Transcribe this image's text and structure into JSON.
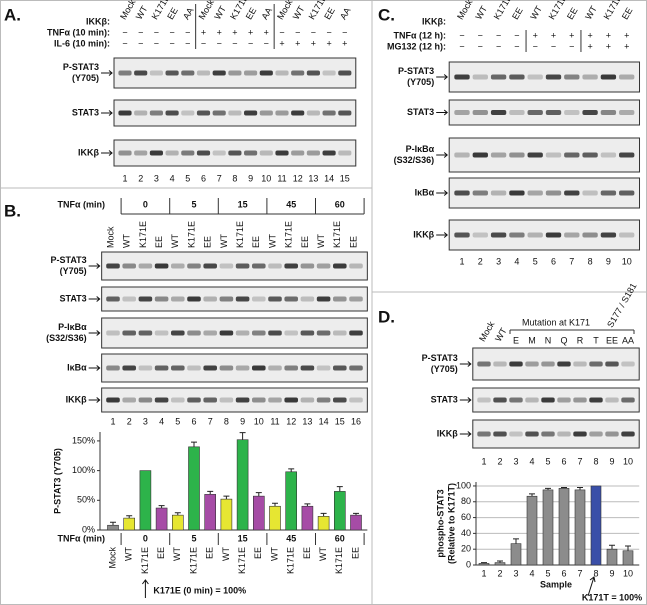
{
  "panels": [
    {
      "label": "A.",
      "row_labels": [
        "IKKβ:",
        "TNFα (10 min):",
        "IL-6 (10 min):"
      ],
      "lanes": [
        "Mock",
        "WT",
        "K171E",
        "EE",
        "AA",
        "Mock",
        "WT",
        "K171E",
        "EE",
        "AA",
        "Mock",
        "WT",
        "K171E",
        "EE",
        "AA"
      ],
      "treatments": [
        [
          "−",
          "−",
          "−",
          "−",
          "−",
          "+",
          "+",
          "+",
          "+",
          "+",
          "−",
          "−",
          "−",
          "−",
          "−"
        ],
        [
          "−",
          "−",
          "−",
          "−",
          "−",
          "−",
          "−",
          "−",
          "−",
          "−",
          "+",
          "+",
          "+",
          "+",
          "+"
        ]
      ],
      "blots": [
        [
          "P-STAT3",
          "(Y705)"
        ],
        [
          "STAT3"
        ],
        [
          "IKKβ"
        ]
      ],
      "lane_numbers": [
        1,
        2,
        3,
        4,
        5,
        6,
        7,
        8,
        9,
        10,
        11,
        12,
        13,
        14,
        15
      ]
    },
    {
      "label": "B.",
      "time_label": "TNFα (min)",
      "groups": [
        0,
        5,
        15,
        45,
        60
      ],
      "lanes": [
        "Mock",
        "WT",
        "K171E",
        "EE",
        "WT",
        "K171E",
        "EE",
        "WT",
        "K171E",
        "EE",
        "WT",
        "K171E",
        "EE",
        "WT",
        "K171E",
        "EE"
      ],
      "blots": [
        [
          "P-STAT3",
          "(Y705)"
        ],
        [
          "STAT3"
        ],
        [
          "P-IκBα",
          "(S32/S36)"
        ],
        [
          "IκBα"
        ],
        [
          "IKKβ"
        ]
      ],
      "lane_numbers": [
        1,
        2,
        3,
        4,
        5,
        6,
        7,
        8,
        9,
        10,
        11,
        12,
        13,
        14,
        15,
        16
      ]
    },
    {
      "label": "C.",
      "row_labels": [
        "IKKβ:",
        "TNFα (12 h):",
        "MG132 (12 h):"
      ],
      "lanes": [
        "Mock",
        "WT",
        "K171E",
        "EE",
        "WT",
        "K171E",
        "EE",
        "WT",
        "K171E",
        "EE"
      ],
      "treatments": [
        [
          "−",
          "−",
          "−",
          "−",
          "+",
          "+",
          "+",
          "+",
          "+",
          "+"
        ],
        [
          "−",
          "−",
          "−",
          "−",
          "−",
          "−",
          "−",
          "+",
          "+",
          "+"
        ]
      ],
      "blots": [
        [
          "P-STAT3",
          "(Y705)"
        ],
        [
          "STAT3"
        ],
        [
          "P-IκBα",
          "(S32/S36)"
        ],
        [
          "IκBα"
        ],
        [
          "IKKβ"
        ]
      ],
      "lane_numbers": [
        1,
        2,
        3,
        4,
        5,
        6,
        7,
        8,
        9,
        10
      ]
    },
    {
      "label": "D.",
      "group_label": "Mutation at K171",
      "subgroup_label": "S177 / S181",
      "lanes": [
        "Mock",
        "WT",
        "E",
        "M",
        "N",
        "Q",
        "R",
        "T",
        "EE",
        "AA"
      ],
      "blots": [
        [
          "P-STAT3",
          "(Y705)"
        ],
        [
          "STAT3"
        ],
        [
          "IKKβ"
        ]
      ],
      "lane_numbers": [
        1,
        2,
        3,
        4,
        5,
        6,
        7,
        8,
        9,
        10
      ]
    }
  ],
  "chart_data": [
    {
      "type": "bar",
      "ylabel": "P-STAT3 (Y705)",
      "xlabel": "TNFα (min)",
      "groups": [
        0,
        5,
        15,
        45,
        60
      ],
      "categories": [
        "Mock",
        "WT",
        "K171E",
        "EE",
        "WT",
        "K171E",
        "EE",
        "WT",
        "K171E",
        "EE",
        "WT",
        "K171E",
        "EE",
        "WT",
        "K171E",
        "EE"
      ],
      "values": [
        8,
        20,
        100,
        37,
        25,
        140,
        60,
        52,
        152,
        57,
        40,
        98,
        40,
        23,
        65,
        25
      ],
      "errors": [
        5,
        4,
        0,
        4,
        4,
        8,
        5,
        5,
        12,
        6,
        5,
        5,
        4,
        5,
        8,
        3
      ],
      "colors": [
        "#8c8c8c",
        "#e6e632",
        "#2db34a",
        "#a64ca6",
        "#e6e632",
        "#2db34a",
        "#a64ca6",
        "#e6e632",
        "#2db34a",
        "#a64ca6",
        "#e6e632",
        "#2db34a",
        "#a64ca6",
        "#e6e632",
        "#2db34a",
        "#a64ca6"
      ],
      "ylim": [
        0,
        165
      ],
      "yticks": [
        {
          "value": 0,
          "label": "0%"
        },
        {
          "value": 50,
          "label": "50%"
        },
        {
          "value": 100,
          "label": "100%"
        },
        {
          "value": 150,
          "label": "150%"
        }
      ],
      "annotation": "K171E (0 min) = 100%"
    },
    {
      "type": "bar",
      "ylabel": [
        "phospho-STAT3",
        "(Relative to K171T)"
      ],
      "xlabel": "Sample",
      "categories": [
        "1",
        "2",
        "3",
        "4",
        "5",
        "6",
        "7",
        "8",
        "9",
        "10"
      ],
      "values": [
        2,
        3,
        27,
        87,
        95,
        97,
        95,
        100,
        20,
        18
      ],
      "errors": [
        1,
        2,
        6,
        3,
        2,
        1,
        3,
        0,
        5,
        6
      ],
      "colors": [
        "#8c8c8c",
        "#8c8c8c",
        "#8c8c8c",
        "#8c8c8c",
        "#8c8c8c",
        "#8c8c8c",
        "#8c8c8c",
        "#3a4fa8",
        "#8c8c8c",
        "#8c8c8c"
      ],
      "ylim": [
        0,
        105
      ],
      "yticks": [
        0,
        20,
        40,
        60,
        80,
        100
      ],
      "grid": true,
      "annotation": "K171T = 100%"
    }
  ]
}
